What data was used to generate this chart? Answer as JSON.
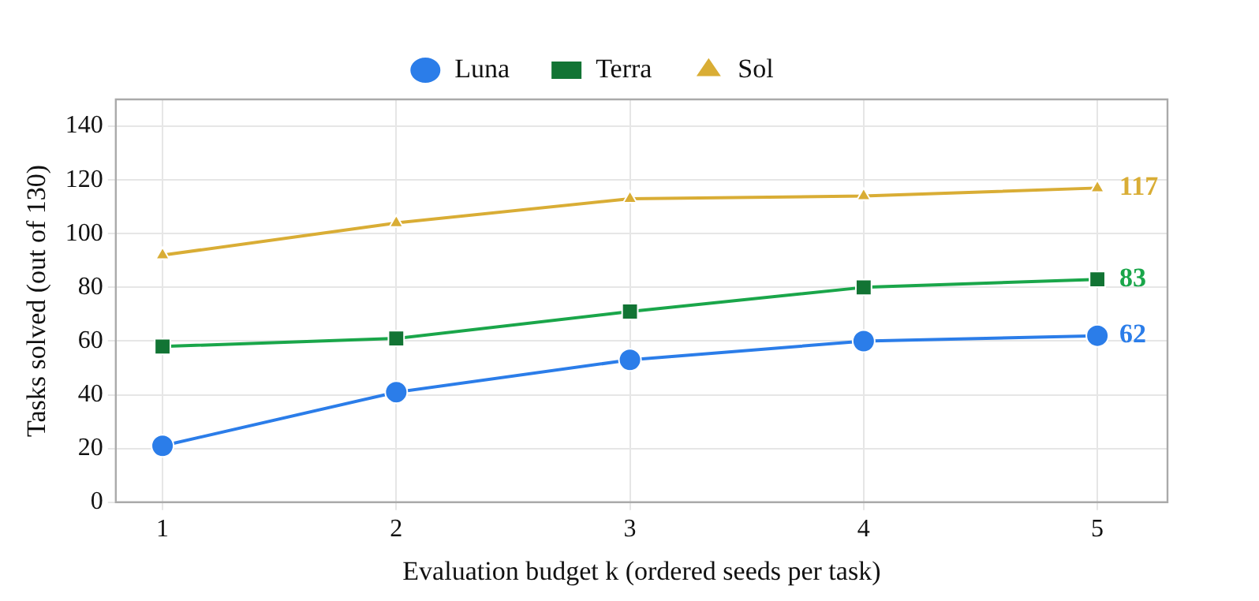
{
  "chart_data": {
    "type": "line",
    "xlabel": "Evaluation budget k (ordered seeds per task)",
    "ylabel": "Tasks solved (out of 130)",
    "x": [
      1,
      2,
      3,
      4,
      5
    ],
    "series": [
      {
        "name": "Luna",
        "color": "#2b7de9",
        "marker": "circle",
        "values": [
          21,
          41,
          53,
          60,
          62
        ],
        "value_labels": [
          null,
          null,
          null,
          null,
          "62"
        ]
      },
      {
        "name": "Terra",
        "color": "#1aa64a",
        "marker": "square",
        "values": [
          58,
          61,
          71,
          80,
          83
        ],
        "value_labels": [
          null,
          null,
          null,
          null,
          "83"
        ]
      },
      {
        "name": "Sol",
        "color": "#d9ad35",
        "marker": "triangle",
        "values": [
          92,
          104,
          113,
          114,
          117
        ],
        "value_labels": [
          null,
          null,
          null,
          null,
          "117"
        ]
      }
    ],
    "xlim": [
      0.8,
      5.3
    ],
    "xticks": [
      1,
      2,
      3,
      4,
      5
    ],
    "ylim": [
      0,
      150
    ],
    "yticks": [
      0,
      20,
      40,
      60,
      80,
      100,
      120,
      140
    ],
    "grid": true,
    "legend": "top"
  }
}
